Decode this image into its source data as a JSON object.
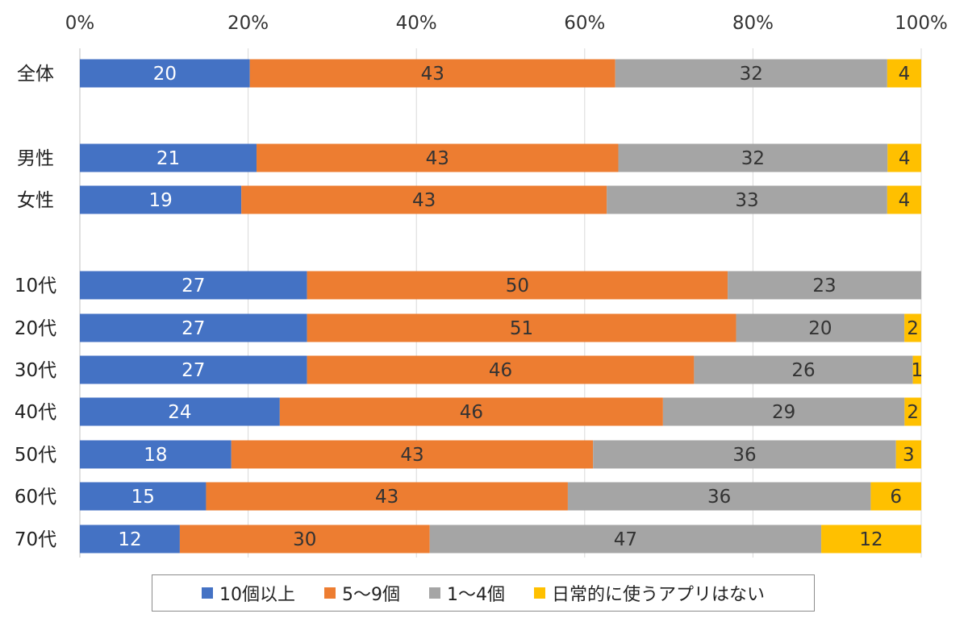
{
  "chart_data": {
    "type": "bar",
    "orientation": "horizontal",
    "stacked": "percent",
    "xlim": [
      0,
      100
    ],
    "x_ticks": [
      "0%",
      "20%",
      "40%",
      "60%",
      "80%",
      "100%"
    ],
    "x_tick_values": [
      0,
      20,
      40,
      60,
      80,
      100
    ],
    "x_axis_position": "top",
    "grid": true,
    "legend_position": "bottom",
    "groups": [
      {
        "categories": [
          "全体"
        ]
      },
      {
        "categories": [
          "男性",
          "女性"
        ]
      },
      {
        "categories": [
          "10代",
          "20代",
          "30代",
          "40代",
          "50代",
          "60代",
          "70代"
        ]
      }
    ],
    "categories": [
      "全体",
      "男性",
      "女性",
      "10代",
      "20代",
      "30代",
      "40代",
      "50代",
      "60代",
      "70代"
    ],
    "series": [
      {
        "name": "10個以上",
        "color": "#4472C4",
        "label_color": "#ffffff",
        "values": [
          20,
          21,
          19,
          27,
          27,
          27,
          24,
          18,
          15,
          12
        ]
      },
      {
        "name": "5～9個",
        "color": "#ED7D31",
        "label_color": "#333333",
        "values": [
          43,
          43,
          43,
          50,
          51,
          46,
          46,
          43,
          43,
          30
        ]
      },
      {
        "name": "1～4個",
        "color": "#A5A5A5",
        "label_color": "#333333",
        "values": [
          32,
          32,
          33,
          23,
          20,
          26,
          29,
          36,
          36,
          47
        ]
      },
      {
        "name": "日常的に使うアプリはない",
        "color": "#FFC000",
        "label_color": "#333333",
        "values": [
          4,
          4,
          4,
          null,
          2,
          1,
          2,
          3,
          6,
          12
        ]
      }
    ]
  }
}
